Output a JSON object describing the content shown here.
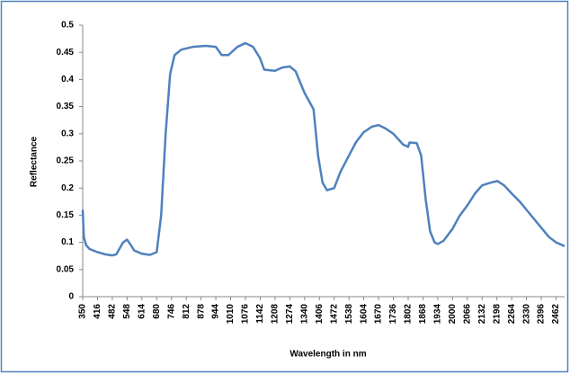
{
  "chart_data": {
    "type": "line",
    "xlabel": "Wavelength in nm",
    "ylabel": "Reflectance",
    "x": [
      350,
      355,
      365,
      380,
      416,
      450,
      482,
      500,
      530,
      548,
      560,
      580,
      614,
      650,
      680,
      700,
      720,
      740,
      760,
      790,
      840,
      900,
      944,
      970,
      1000,
      1040,
      1076,
      1110,
      1140,
      1160,
      1208,
      1240,
      1274,
      1300,
      1340,
      1380,
      1400,
      1420,
      1440,
      1472,
      1500,
      1538,
      1570,
      1604,
      1640,
      1670,
      1700,
      1736,
      1780,
      1802,
      1808,
      1840,
      1860,
      1880,
      1900,
      1920,
      1934,
      1960,
      2000,
      2030,
      2066,
      2100,
      2132,
      2170,
      2200,
      2230,
      2264,
      2300,
      2330,
      2360,
      2396,
      2430,
      2462,
      2500
    ],
    "series": [
      {
        "name": "Reflectance",
        "color": "#4f81bd",
        "values": [
          0.16,
          0.11,
          0.095,
          0.088,
          0.082,
          0.078,
          0.076,
          0.078,
          0.1,
          0.105,
          0.098,
          0.085,
          0.079,
          0.077,
          0.082,
          0.15,
          0.3,
          0.41,
          0.445,
          0.455,
          0.46,
          0.462,
          0.46,
          0.445,
          0.445,
          0.46,
          0.467,
          0.46,
          0.44,
          0.418,
          0.416,
          0.422,
          0.424,
          0.415,
          0.375,
          0.345,
          0.26,
          0.21,
          0.196,
          0.2,
          0.23,
          0.26,
          0.285,
          0.303,
          0.313,
          0.316,
          0.31,
          0.3,
          0.28,
          0.276,
          0.284,
          0.283,
          0.26,
          0.18,
          0.12,
          0.1,
          0.097,
          0.103,
          0.125,
          0.148,
          0.168,
          0.19,
          0.205,
          0.21,
          0.213,
          0.205,
          0.19,
          0.175,
          0.16,
          0.145,
          0.127,
          0.11,
          0.1,
          0.093
        ]
      }
    ],
    "xlim": [
      350,
      2500
    ],
    "xticks": [
      350,
      416,
      482,
      548,
      614,
      680,
      746,
      812,
      878,
      944,
      1010,
      1076,
      1142,
      1208,
      1274,
      1340,
      1406,
      1472,
      1538,
      1604,
      1670,
      1736,
      1802,
      1868,
      1934,
      2000,
      2066,
      2132,
      2198,
      2264,
      2330,
      2396,
      2462
    ],
    "ylim": [
      0,
      0.5
    ],
    "yticks": [
      0,
      0.05,
      0.1,
      0.15,
      0.2,
      0.25,
      0.3,
      0.35,
      0.4,
      0.45,
      0.5
    ],
    "grid": false
  }
}
